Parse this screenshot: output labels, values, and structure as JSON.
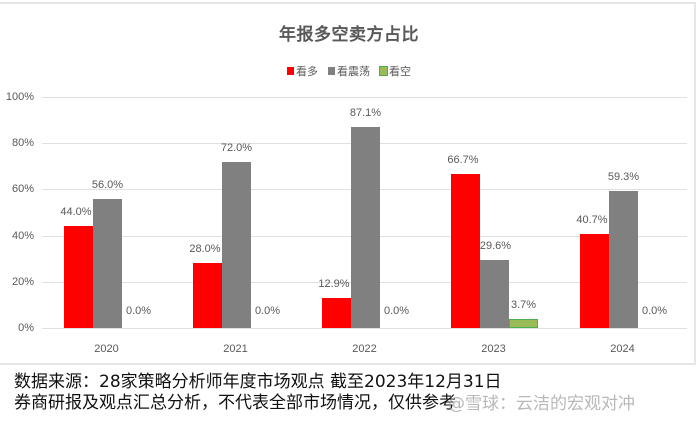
{
  "chart_data": {
    "type": "bar",
    "title": "年报多空卖方占比",
    "categories": [
      "2020",
      "2021",
      "2022",
      "2023",
      "2024"
    ],
    "series": [
      {
        "name": "看多",
        "color": "#ff0000",
        "values": [
          44.0,
          28.0,
          12.9,
          66.7,
          40.7
        ],
        "labels": [
          "44.0%",
          "28.0%",
          "12.9%",
          "66.7%",
          "40.7%"
        ]
      },
      {
        "name": "看震荡",
        "color": "#808080",
        "values": [
          56.0,
          72.0,
          87.1,
          29.6,
          59.3
        ],
        "labels": [
          "56.0%",
          "72.0%",
          "87.1%",
          "29.6%",
          "59.3%"
        ]
      },
      {
        "name": "看空",
        "color": "#9bbb59",
        "values": [
          0.0,
          0.0,
          0.0,
          3.7,
          0.0
        ],
        "labels": [
          "0.0%",
          "0.0%",
          "0.0%",
          "3.7%",
          "0.0%"
        ]
      }
    ],
    "xlabel": "",
    "ylabel": "",
    "ylim": [
      0,
      100
    ],
    "yticks": [
      "0%",
      "20%",
      "40%",
      "60%",
      "80%",
      "100%"
    ],
    "grid": true,
    "legend_position": "top"
  },
  "footer": {
    "line1": "数据来源：28家策略分析师年度市场观点 截至2023年12月31日",
    "line2": "券商研报及观点汇总分析，不代表全部市场情况，仅供参考"
  },
  "watermark": "@雪球：云洁的宏观对冲"
}
